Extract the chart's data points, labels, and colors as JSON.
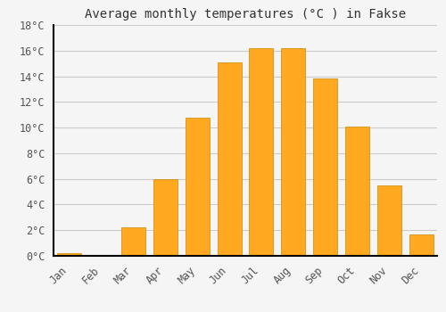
{
  "title": "Average monthly temperatures (°C ) in Fakse",
  "months": [
    "Jan",
    "Feb",
    "Mar",
    "Apr",
    "May",
    "Jun",
    "Jul",
    "Aug",
    "Sep",
    "Oct",
    "Nov",
    "Dec"
  ],
  "values": [
    0.2,
    0.1,
    2.2,
    6.0,
    10.8,
    15.1,
    16.2,
    16.2,
    13.8,
    10.1,
    5.5,
    1.7
  ],
  "bar_color": "#FFA820",
  "bar_edge_color": "#CC8800",
  "background_color": "#f5f5f5",
  "plot_bg_color": "#f5f5f5",
  "grid_color": "#cccccc",
  "ylim": [
    0,
    18
  ],
  "yticks": [
    0,
    2,
    4,
    6,
    8,
    10,
    12,
    14,
    16,
    18
  ],
  "title_fontsize": 10,
  "tick_fontsize": 8.5,
  "font_family": "monospace"
}
